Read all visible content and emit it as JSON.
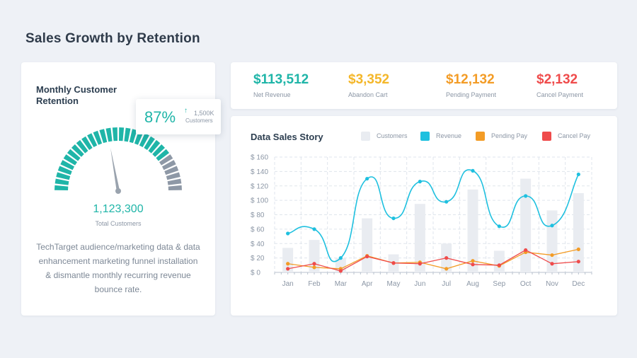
{
  "page": {
    "title": "Sales Growth by Retention"
  },
  "retention": {
    "title": "Monthly Customer Retention",
    "percent_label": "87%",
    "percent": 87,
    "customers_count": "1,500K",
    "customers_label": "Customers",
    "total_value": "1,123,300",
    "total_label": "Total Customers",
    "description": "TechTarget audience/marketing data & data enhancement marketing funnel installation & dismantle monthly recurring revenue bounce rate.",
    "colors": {
      "filled": "#1fb5a8",
      "empty": "#8e98a6",
      "needle": "#9aa3ae"
    }
  },
  "kpis": [
    {
      "value": "$113,512",
      "label": "Net Revenue",
      "color": "#1fb5a8"
    },
    {
      "value": "$3,352",
      "label": "Abandon Cart",
      "color": "#f4b72a"
    },
    {
      "value": "$12,132",
      "label": "Pending Payment",
      "color": "#f39c26"
    },
    {
      "value": "$2,132",
      "label": "Cancel Payment",
      "color": "#ef4b4b"
    }
  ],
  "chart_data": {
    "type": "bar",
    "title": "Data Sales Story",
    "categories": [
      "Jan",
      "Feb",
      "Mar",
      "Apr",
      "May",
      "Jun",
      "Jul",
      "Aug",
      "Sep",
      "Oct",
      "Nov",
      "Dec"
    ],
    "y_ticks": [
      "$ 0",
      "$ 20",
      "$ 40",
      "$ 60",
      "$ 80",
      "$ 100",
      "$ 120",
      "$ 140",
      "$ 160"
    ],
    "ylim": [
      0,
      160
    ],
    "xlabel": "",
    "ylabel": "",
    "grid": true,
    "series": [
      {
        "name": "Customers",
        "kind": "bar",
        "color": "#e9ecf1",
        "values": [
          34,
          45,
          20,
          75,
          25,
          95,
          40,
          115,
          30,
          130,
          86,
          110
        ]
      },
      {
        "name": "Revenue",
        "kind": "line",
        "color": "#1ec0df",
        "values": [
          54,
          60,
          20,
          130,
          75,
          126,
          98,
          141,
          64,
          106,
          65,
          136
        ]
      },
      {
        "name": "Pending Pay",
        "kind": "line",
        "color": "#f39c26",
        "values": [
          12,
          7,
          5,
          23,
          13,
          14,
          5,
          16,
          9,
          28,
          24,
          32
        ]
      },
      {
        "name": "Cancel Pay",
        "kind": "line",
        "color": "#ef4b4b",
        "values": [
          5,
          12,
          2,
          22,
          13,
          12,
          20,
          11,
          10,
          31,
          12,
          15
        ]
      }
    ]
  }
}
